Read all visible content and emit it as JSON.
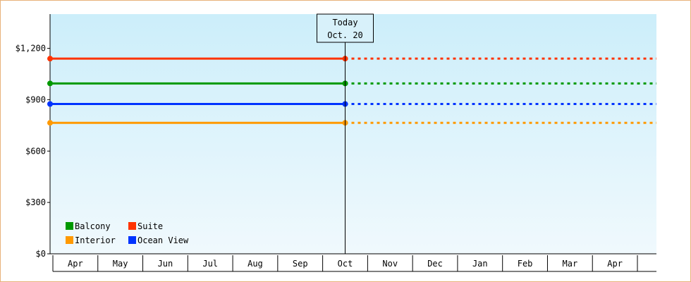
{
  "chart_data": {
    "type": "line",
    "ylim": [
      0,
      1400
    ],
    "y_ticks": [
      {
        "value": 0,
        "label": "$0"
      },
      {
        "value": 300,
        "label": "$300"
      },
      {
        "value": 600,
        "label": "$600"
      },
      {
        "value": 900,
        "label": "$900"
      },
      {
        "value": 1200,
        "label": "$1,200"
      }
    ],
    "categories": [
      "Apr",
      "May",
      "Jun",
      "Jul",
      "Aug",
      "Sep",
      "Oct",
      "Nov",
      "Dec",
      "Jan",
      "Feb",
      "Mar",
      "Apr"
    ],
    "today": {
      "line1": "Today",
      "line2": "Oct. 20",
      "category_index": 6
    },
    "grid": false,
    "legend_placement": "bottom-left",
    "background_top": "#cceefa",
    "background_bottom": "#f0f9fd",
    "series": [
      {
        "name": "Suite",
        "value": 1140,
        "color": "#ff3300"
      },
      {
        "name": "Balcony",
        "value": 995,
        "color": "#009900"
      },
      {
        "name": "Ocean View",
        "value": 875,
        "color": "#0033ff"
      },
      {
        "name": "Interior",
        "value": 765,
        "color": "#ff9900"
      }
    ],
    "legend_order": [
      [
        "Balcony",
        "Suite"
      ],
      [
        "Interior",
        "Ocean View"
      ]
    ]
  }
}
